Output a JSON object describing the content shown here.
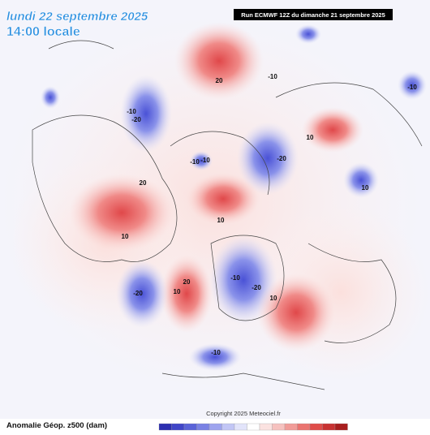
{
  "header": {
    "date": "lundi 22 septembre 2025",
    "time": "14:00 locale",
    "run": "Run ECMWF 12Z du dimanche 21 septembre 2025"
  },
  "map": {
    "contour_labels": [
      20,
      -10,
      -20,
      -10,
      10,
      -10,
      -20,
      10,
      10,
      20,
      -20,
      -10,
      -20,
      10,
      10,
      20,
      -10,
      10,
      -10,
      -10
    ]
  },
  "footer": {
    "legend_title": "Anomalie Géop. z500 (dam)",
    "copyright": "Copyright 2025 Meteociel.fr"
  }
}
